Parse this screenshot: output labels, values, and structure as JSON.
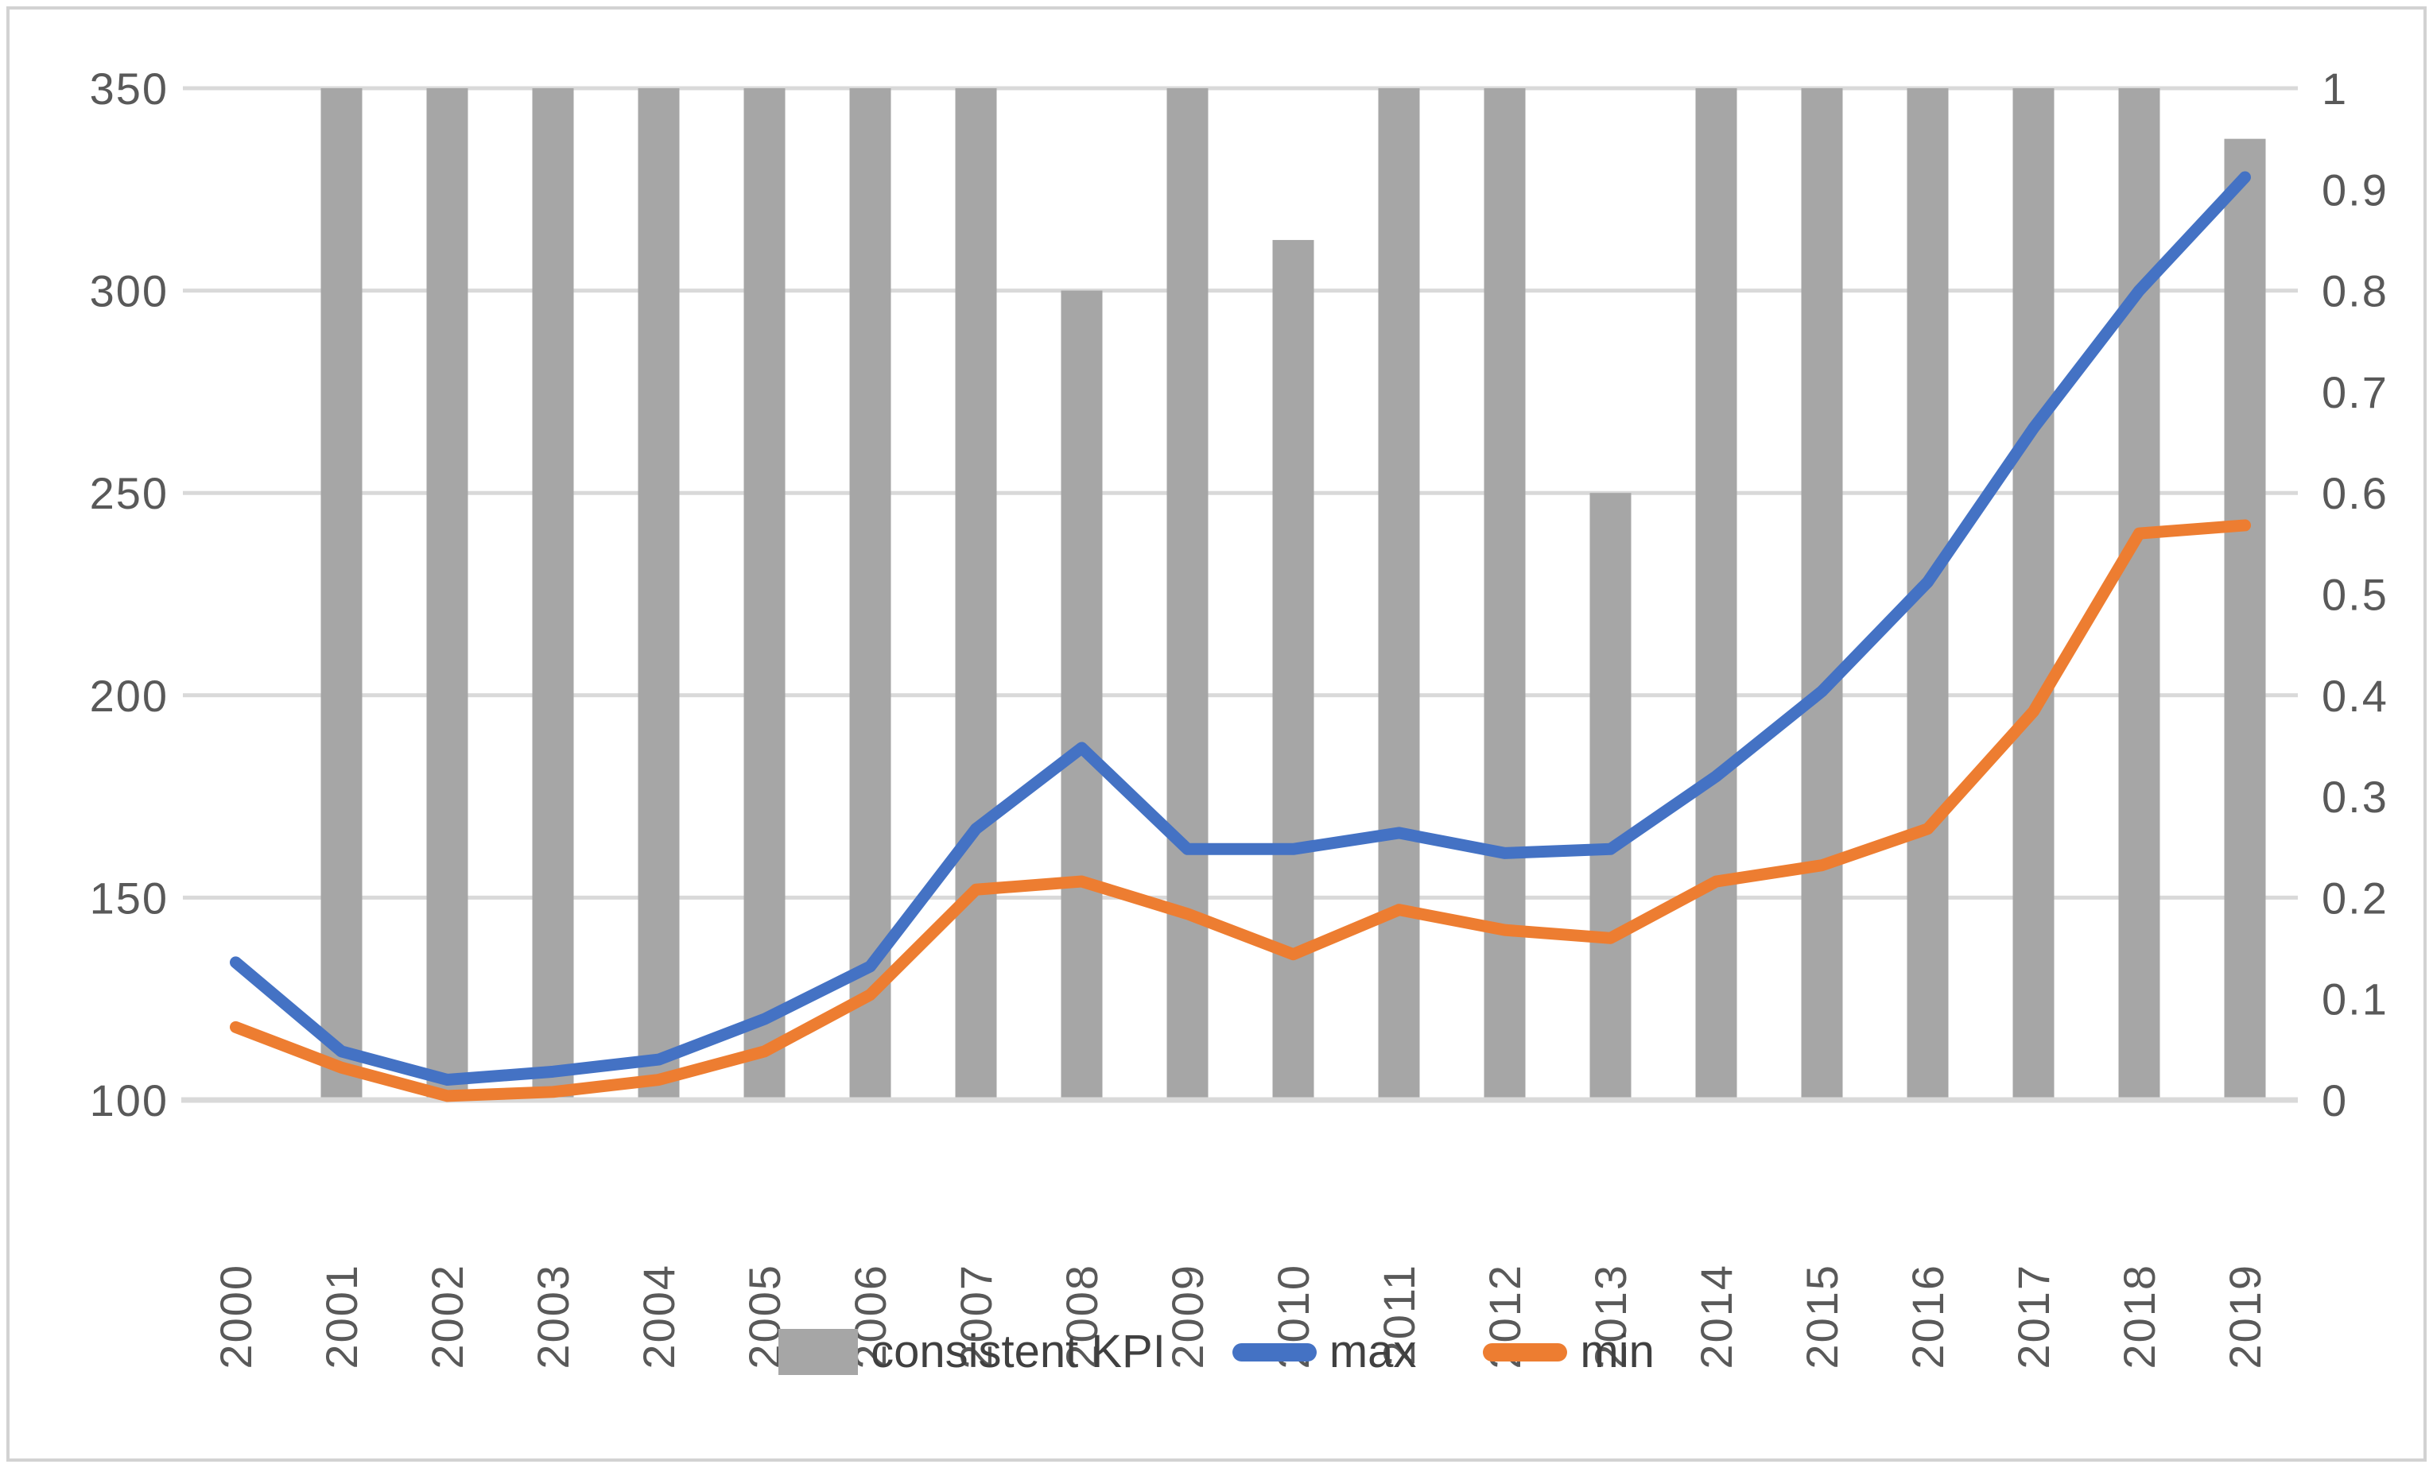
{
  "colors": {
    "bar": "#a6a6a6",
    "max_line": "#4472c4",
    "min_line": "#ed7d31",
    "gridline": "#d9d9d9",
    "axis_line": "#d9d9d9",
    "tick_text": "#595959",
    "legend_text": "#404040",
    "background": "#ffffff",
    "frame_border": "#d2d2d2"
  },
  "legend": {
    "items": [
      {
        "label": "consistent KPI",
        "swatch": "bar-swatch"
      },
      {
        "label": "max",
        "swatch": "line-swatch"
      },
      {
        "label": "min",
        "swatch": "line-swatch"
      }
    ]
  },
  "chart_data": {
    "type": "bar",
    "subtype": "combo-bar-line-dual-axis",
    "title": "",
    "xlabel": "",
    "ylabel": "",
    "grid": true,
    "legend_position": "bottom",
    "categories": [
      "2000",
      "2001",
      "2002",
      "2003",
      "2004",
      "2005",
      "2006",
      "2007",
      "2008",
      "2009",
      "2010",
      "2011",
      "2012",
      "2013",
      "2014",
      "2015",
      "2016",
      "2017",
      "2018",
      "2019"
    ],
    "left_axis": {
      "min": 100,
      "max": 350,
      "tick_step": 50,
      "ticks": [
        "350",
        "300",
        "250",
        "200",
        "150",
        "100"
      ],
      "tick_values": [
        350,
        300,
        250,
        200,
        150,
        100
      ]
    },
    "right_axis": {
      "min": 0,
      "max": 1,
      "tick_step": 0.1,
      "ticks": [
        "1",
        "0.9",
        "0.8",
        "0.7",
        "0.6",
        "0.5",
        "0.4",
        "0.3",
        "0.2",
        "0.1",
        "0"
      ],
      "tick_values": [
        1,
        0.9,
        0.8,
        0.7,
        0.6,
        0.5,
        0.4,
        0.3,
        0.2,
        0.1,
        0
      ]
    },
    "series": [
      {
        "name": "consistent KPI",
        "type": "bar",
        "axis": "right",
        "color": "#a6a6a6",
        "values": [
          0,
          1,
          1,
          1,
          1,
          1,
          1,
          1,
          0.8,
          1,
          0.85,
          1,
          1,
          0.6,
          1,
          1,
          1,
          1,
          1,
          0.95
        ]
      },
      {
        "name": "max",
        "type": "line",
        "axis": "left",
        "color": "#4472c4",
        "values": [
          134,
          112,
          105,
          107,
          110,
          120,
          133,
          167,
          187,
          162,
          162,
          166,
          161,
          162,
          180,
          201,
          228,
          266,
          300,
          328
        ]
      },
      {
        "name": "min",
        "type": "line",
        "axis": "left",
        "color": "#ed7d31",
        "values": [
          118,
          108,
          101,
          102,
          105,
          112,
          126,
          152,
          154,
          146,
          136,
          147,
          142,
          140,
          154,
          158,
          167,
          196,
          240,
          242
        ]
      }
    ]
  }
}
